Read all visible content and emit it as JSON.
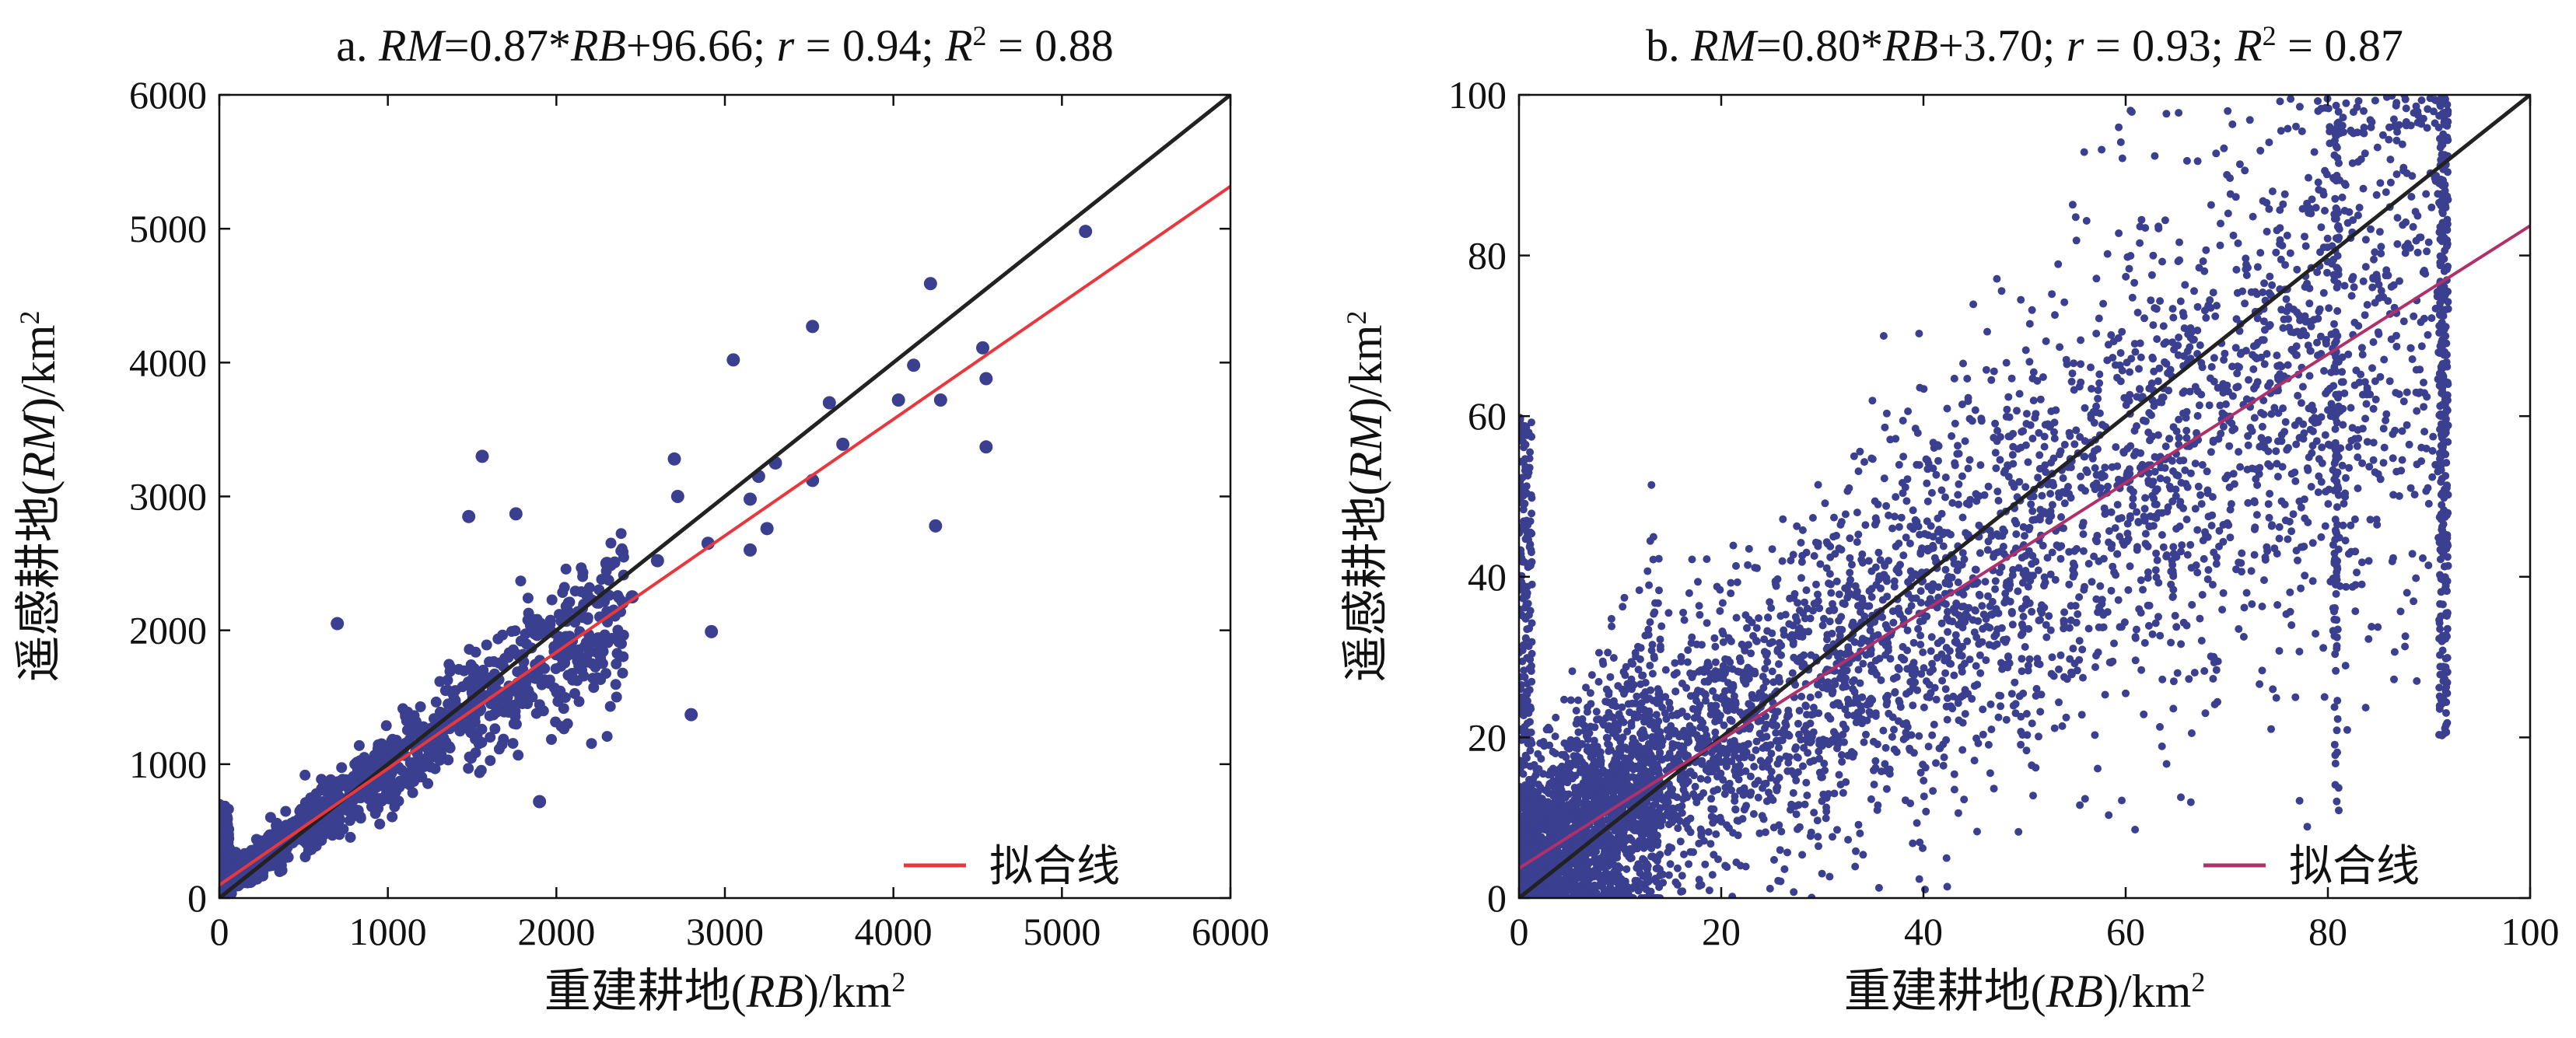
{
  "chart_data": [
    {
      "type": "scatter",
      "title_parts": [
        "a. ",
        "RM",
        "=0.87*",
        "RB",
        "+96.66; ",
        "r",
        " = 0.94; ",
        "R",
        "2",
        " = 0.88"
      ],
      "xlabel_parts": [
        "重建耕地(",
        "RB",
        ")/km",
        "2"
      ],
      "ylabel_parts": [
        "遥感耕地(",
        "RM",
        ")/km",
        "2"
      ],
      "xlim": [
        0,
        6000
      ],
      "ylim": [
        0,
        6000
      ],
      "xticks": [
        0,
        1000,
        2000,
        3000,
        4000,
        5000,
        6000
      ],
      "yticks": [
        0,
        1000,
        2000,
        3000,
        4000,
        5000,
        6000
      ],
      "legend": {
        "label": "拟合线",
        "position": "bottom-right"
      },
      "fit_line": {
        "slope": 0.87,
        "intercept": 96.66,
        "color": "#e8383d"
      },
      "reference_line": {
        "slope": 1,
        "intercept": 0,
        "color": "#222222"
      },
      "point_color": "#3b3f8f",
      "outlier_points": [
        [
          5140,
          4980
        ],
        [
          4220,
          4590
        ],
        [
          4530,
          4110
        ],
        [
          4550,
          3880
        ],
        [
          4280,
          3720
        ],
        [
          4550,
          3370
        ],
        [
          4250,
          2780
        ],
        [
          4120,
          3980
        ],
        [
          4030,
          3720
        ],
        [
          3700,
          3390
        ],
        [
          3620,
          3700
        ],
        [
          3520,
          4270
        ],
        [
          3050,
          4020
        ],
        [
          3520,
          3120
        ],
        [
          3300,
          3250
        ],
        [
          3200,
          3150
        ],
        [
          3150,
          2980
        ],
        [
          3250,
          2760
        ],
        [
          3150,
          2600
        ],
        [
          2900,
          2650
        ],
        [
          2920,
          1990
        ],
        [
          2800,
          1370
        ],
        [
          2700,
          3280
        ],
        [
          2720,
          3000
        ],
        [
          2600,
          2520
        ],
        [
          1900,
          720
        ],
        [
          1560,
          3300
        ],
        [
          1480,
          2850
        ],
        [
          1760,
          2870
        ],
        [
          2100,
          1830
        ],
        [
          700,
          2050
        ],
        [
          1900,
          2020
        ],
        [
          2300,
          2500
        ],
        [
          2450,
          2250
        ]
      ],
      "cluster_note_points": 0
    },
    {
      "type": "scatter",
      "title_parts": [
        "b. ",
        "RM",
        "=0.80*",
        "RB",
        "+3.70; ",
        "r",
        " = 0.93; ",
        "R",
        "2",
        " = 0.87"
      ],
      "xlabel_parts": [
        "重建耕地(",
        "RB",
        ")/km",
        "2"
      ],
      "ylabel_parts": [
        "遥感耕地(",
        "RM",
        ")/km",
        "2"
      ],
      "xlim": [
        0,
        100
      ],
      "ylim": [
        0,
        100
      ],
      "xticks": [
        0,
        20,
        40,
        60,
        80,
        100
      ],
      "yticks": [
        0,
        20,
        40,
        60,
        80,
        100
      ],
      "legend": {
        "label": "拟合线",
        "position": "bottom-right"
      },
      "fit_line": {
        "slope": 0.8,
        "intercept": 3.7,
        "color": "#b0306a"
      },
      "reference_line": {
        "slope": 1,
        "intercept": 0,
        "color": "#222222"
      },
      "point_color": "#3b3f8f"
    }
  ]
}
